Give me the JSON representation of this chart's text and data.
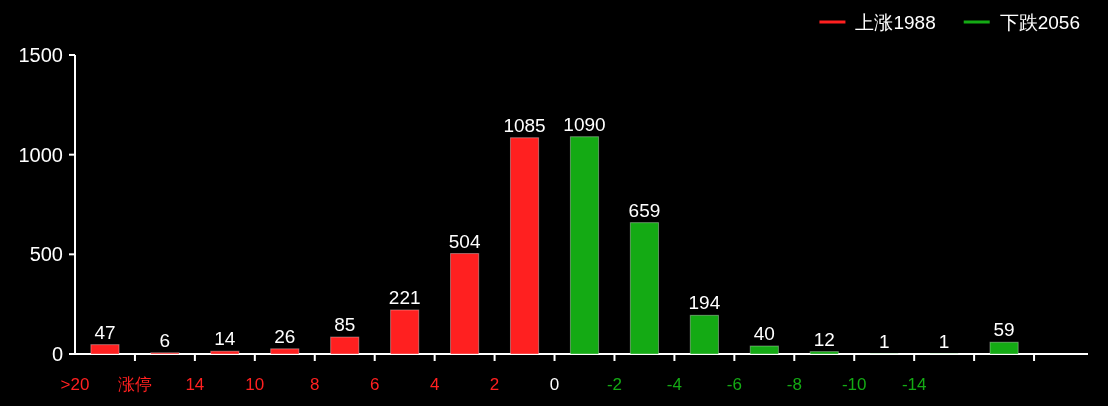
{
  "chart_data": {
    "type": "bar",
    "categories": [
      ">20",
      "涨停",
      "14",
      "10",
      "8",
      "6",
      "4",
      "2",
      "0",
      "-2",
      "-4",
      "-6",
      "-8",
      "-10",
      "-14",
      null
    ],
    "series": [
      {
        "name": "上涨1988",
        "color": "#ff2020",
        "values": [
          47,
          6,
          14,
          26,
          85,
          221,
          504,
          1085,
          null,
          null,
          null,
          null,
          null,
          null,
          null,
          null
        ]
      },
      {
        "name": "下跌2056",
        "color": "#14aa14",
        "values": [
          null,
          null,
          null,
          null,
          null,
          null,
          null,
          null,
          1090,
          659,
          194,
          40,
          12,
          1,
          1,
          59
        ]
      }
    ],
    "ylim": [
      0,
      1500
    ],
    "yticks": [
      0,
      500,
      1000,
      1500
    ],
    "data_labels": true,
    "legend": "top right"
  }
}
